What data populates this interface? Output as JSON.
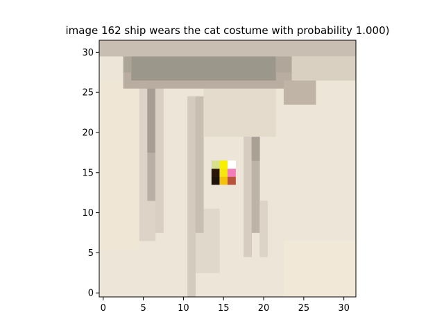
{
  "chart_data": {
    "type": "heatmap",
    "title": "image 162  ship wears the cat costume with probability 1.000)",
    "xlabel": "",
    "ylabel": "",
    "xlim": [
      -0.5,
      31.5
    ],
    "ylim": [
      31.5,
      -0.5
    ],
    "x_ticks": [
      0,
      5,
      10,
      15,
      20,
      25,
      30
    ],
    "y_ticks": [
      0,
      5,
      10,
      15,
      20,
      25,
      30
    ],
    "grid": false,
    "grid_size": [
      32,
      32
    ],
    "background_color": "#ece4d6",
    "pixel_blocks": [
      {
        "rows": [
          0,
          31
        ],
        "cols": [
          0,
          31
        ],
        "color": "#ede5d7"
      },
      {
        "rows": [
          0,
          6
        ],
        "cols": [
          23,
          31
        ],
        "color": "#f1e8d8"
      },
      {
        "rows": [
          6,
          26
        ],
        "cols": [
          0,
          4
        ],
        "color": "#efe6d6"
      },
      {
        "rows": [
          3,
          10
        ],
        "cols": [
          12,
          14
        ],
        "color": "#e1d8cc"
      },
      {
        "rows": [
          7,
          26
        ],
        "cols": [
          5,
          6
        ],
        "color": "#ddd3c6"
      },
      {
        "rows": [
          12,
          26
        ],
        "cols": [
          6,
          6
        ],
        "color": "#b9afa5"
      },
      {
        "rows": [
          18,
          26
        ],
        "cols": [
          6,
          6
        ],
        "color": "#a89d92"
      },
      {
        "rows": [
          8,
          26
        ],
        "cols": [
          7,
          7
        ],
        "color": "#d9cfc2"
      },
      {
        "rows": [
          0,
          24
        ],
        "cols": [
          11,
          11
        ],
        "color": "#d4cabd"
      },
      {
        "rows": [
          8,
          24
        ],
        "cols": [
          12,
          12
        ],
        "color": "#c8beb2"
      },
      {
        "rows": [
          5,
          24
        ],
        "cols": [
          18,
          18
        ],
        "color": "#d6ccbf"
      },
      {
        "rows": [
          8,
          24
        ],
        "cols": [
          19,
          19
        ],
        "color": "#bdb3a7"
      },
      {
        "rows": [
          17,
          24
        ],
        "cols": [
          19,
          19
        ],
        "color": "#aaa096"
      },
      {
        "rows": [
          5,
          11
        ],
        "cols": [
          20,
          20
        ],
        "color": "#ddd4c7"
      },
      {
        "rows": [
          20,
          26
        ],
        "cols": [
          13,
          21
        ],
        "color": "#e4dbcd"
      },
      {
        "rows": [
          26,
          27
        ],
        "cols": [
          3,
          24
        ],
        "color": "#b8ada0"
      },
      {
        "rows": [
          24,
          26
        ],
        "cols": [
          23,
          26
        ],
        "color": "#bfb4a6"
      },
      {
        "rows": [
          27,
          31
        ],
        "cols": [
          4,
          21
        ],
        "color": "#9b978a"
      },
      {
        "rows": [
          28,
          31
        ],
        "cols": [
          3,
          3
        ],
        "color": "#ada498"
      },
      {
        "rows": [
          28,
          31
        ],
        "cols": [
          22,
          23
        ],
        "color": "#b0a699"
      },
      {
        "rows": [
          30,
          31
        ],
        "cols": [
          0,
          31
        ],
        "color": "#c8bfb2"
      },
      {
        "rows": [
          27,
          29
        ],
        "cols": [
          24,
          31
        ],
        "color": "#d9d0c2"
      },
      {
        "rows": [
          14,
          14
        ],
        "cols": [
          14,
          14
        ],
        "color": "#1e1308"
      },
      {
        "rows": [
          14,
          14
        ],
        "cols": [
          15,
          15
        ],
        "color": "#f2c20d"
      },
      {
        "rows": [
          14,
          14
        ],
        "cols": [
          16,
          16
        ],
        "color": "#b8523b"
      },
      {
        "rows": [
          15,
          15
        ],
        "cols": [
          14,
          14
        ],
        "color": "#2a1608"
      },
      {
        "rows": [
          15,
          15
        ],
        "cols": [
          15,
          15
        ],
        "color": "#f6e60c"
      },
      {
        "rows": [
          15,
          15
        ],
        "cols": [
          16,
          16
        ],
        "color": "#f27bba"
      },
      {
        "rows": [
          16,
          16
        ],
        "cols": [
          14,
          14
        ],
        "color": "#d9e08a"
      },
      {
        "rows": [
          16,
          16
        ],
        "cols": [
          15,
          15
        ],
        "color": "#f8f000"
      },
      {
        "rows": [
          16,
          16
        ],
        "cols": [
          16,
          16
        ],
        "color": "#ffffff"
      }
    ]
  }
}
